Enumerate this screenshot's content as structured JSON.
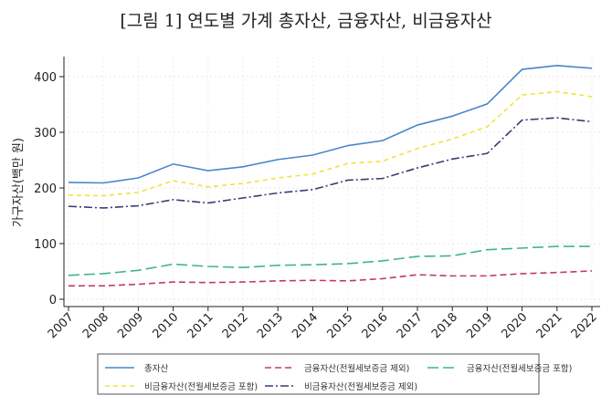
{
  "chart_data": {
    "type": "line",
    "title": "[그림 1] 연도별 가계 총자산, 금융자산, 비금융자산",
    "ylabel": "가구자산(백만 원)",
    "xlabel": "",
    "ylim": [
      0,
      430
    ],
    "yticks": [
      0,
      100,
      200,
      300,
      400
    ],
    "grid": true,
    "legend_placement": "bottom",
    "x": [
      2007,
      2008,
      2009,
      2010,
      2011,
      2012,
      2013,
      2014,
      2015,
      2016,
      2017,
      2018,
      2019,
      2020,
      2021,
      2022
    ],
    "series": [
      {
        "name": "총자산",
        "color": "#4a86c8",
        "dash": "",
        "values": [
          210,
          209,
          218,
          243,
          231,
          238,
          251,
          259,
          276,
          285,
          313,
          329,
          351,
          413,
          420,
          415
        ]
      },
      {
        "name": "금융자산(전월세보증금 제외)",
        "color": "#c0396b",
        "dash": "7,4",
        "values": [
          24,
          24,
          27,
          31,
          30,
          31,
          33,
          34,
          33,
          37,
          44,
          42,
          42,
          46,
          48,
          51
        ]
      },
      {
        "name": "금융자산(전월세보증금 포함)",
        "color": "#3fb58d",
        "dash": "12,5",
        "values": [
          43,
          46,
          52,
          63,
          59,
          57,
          61,
          62,
          64,
          69,
          77,
          78,
          89,
          92,
          95,
          95
        ]
      },
      {
        "name": "비금융자산(전월세보증금 포함)",
        "color": "#f2e23a",
        "dash": "5,4",
        "values": [
          187,
          186,
          192,
          213,
          202,
          208,
          218,
          225,
          244,
          248,
          271,
          288,
          310,
          367,
          373,
          364
        ]
      },
      {
        "name": "비금융자산(전월세보증금 제외)",
        "color": "#3d3a78",
        "dash": "9,3,2,3",
        "values": [
          167,
          164,
          168,
          179,
          173,
          182,
          191,
          197,
          214,
          217,
          236,
          252,
          262,
          322,
          326,
          319
        ]
      }
    ]
  }
}
